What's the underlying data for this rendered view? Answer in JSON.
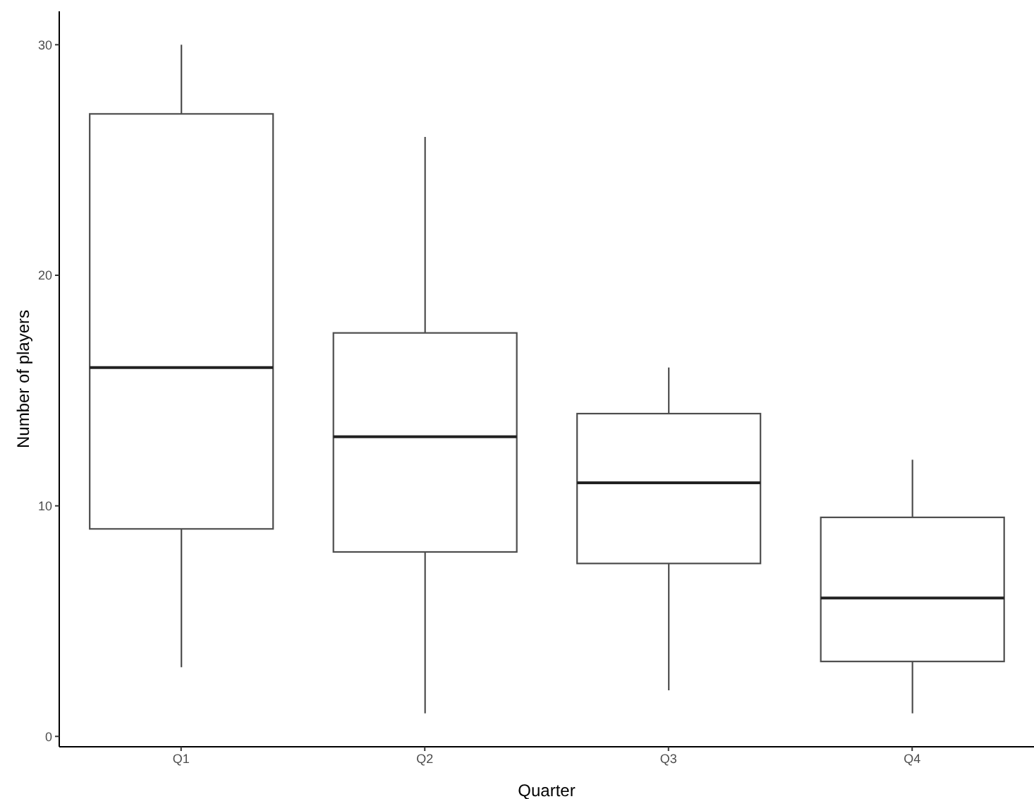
{
  "chart_data": {
    "type": "box",
    "xlabel": "Quarter",
    "ylabel": "Number of players",
    "categories": [
      "Q1",
      "Q2",
      "Q3",
      "Q4"
    ],
    "boxes": [
      {
        "low": 3,
        "q1": 9,
        "median": 16,
        "q3": 27,
        "high": 30
      },
      {
        "low": 1,
        "q1": 8,
        "median": 13,
        "q3": 17.5,
        "high": 26
      },
      {
        "low": 2,
        "q1": 7.5,
        "median": 11,
        "q3": 14,
        "high": 16
      },
      {
        "low": 1,
        "q1": 3.25,
        "median": 6,
        "q3": 9.5,
        "high": 12
      }
    ],
    "ylim": [
      -0.45,
      31.45
    ],
    "yticks": [
      0,
      10,
      20,
      30
    ],
    "grid": false
  }
}
